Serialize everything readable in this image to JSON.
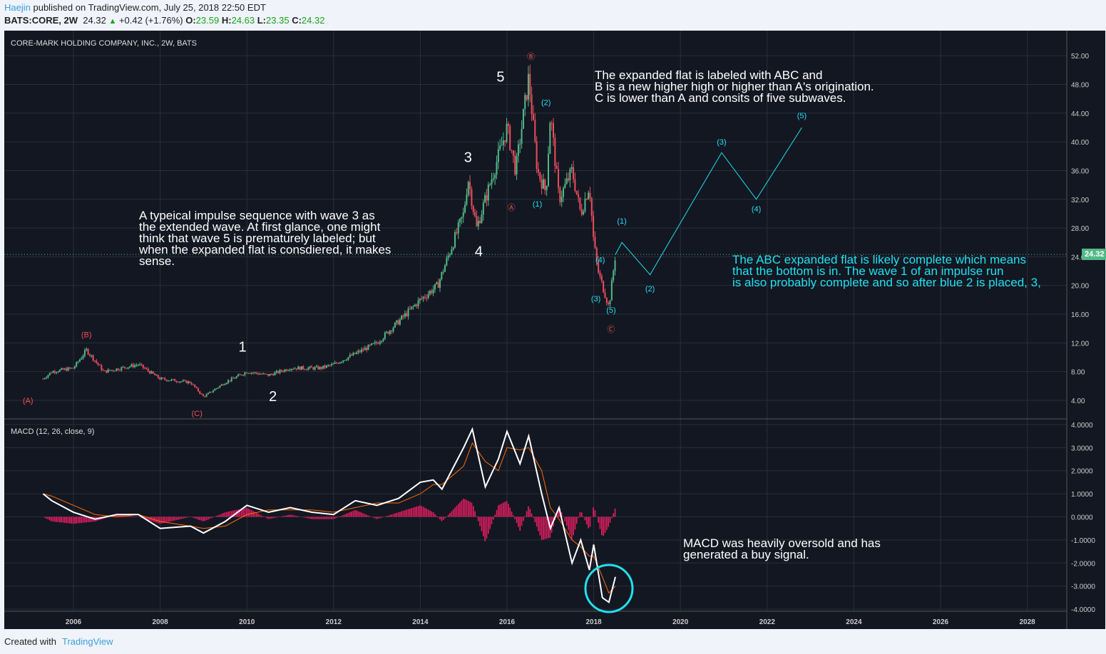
{
  "header": {
    "user": "Haejin",
    "published": "published on TradingView.com, July 25, 2018 22:50 EDT",
    "symbol": "BATS:CORE, 2W",
    "last": "24.32",
    "change": "+0.42 (+1.76%)",
    "o_label": "O:",
    "o": "23.59",
    "h_label": "H:",
    "h": "24.63",
    "l_label": "L:",
    "l": "23.35",
    "c_label": "C:",
    "c": "24.32"
  },
  "footer": {
    "created": "Created with",
    "brand": "TradingView"
  },
  "colors": {
    "bg": "#131722",
    "grid": "#2a2e39",
    "up": "#53b987",
    "down": "#eb4d5c",
    "macd": "#ffffff",
    "signal": "#ff6d00",
    "hist": "#e91e63",
    "wave": "#22e0f0",
    "red": "#ef5350"
  },
  "chart_data": [
    {
      "type": "line",
      "title": "CORE-MARK HOLDING COMPANY, INC., 2W, BATS",
      "ylim": [
        2,
        54
      ],
      "xlim": [
        2005,
        2029.1
      ],
      "yticks": [
        "52.00",
        "48.00",
        "44.00",
        "40.00",
        "36.00",
        "32.00",
        "28.00",
        "24.00",
        "20.00",
        "16.00",
        "12.00",
        "8.00",
        "4.00"
      ],
      "ytick_values": [
        52,
        48,
        44,
        40,
        36,
        32,
        28,
        24,
        20,
        16,
        12,
        8,
        4
      ],
      "xticks": [
        "2006",
        "2008",
        "2010",
        "2012",
        "2014",
        "2016",
        "2018",
        "2020",
        "2022",
        "2024",
        "2026",
        "2028"
      ],
      "last_price": "24.32",
      "x": [
        2005.3,
        2005.5,
        2006.0,
        2006.3,
        2006.7,
        2007.5,
        2008.0,
        2008.7,
        2009.0,
        2009.5,
        2010.0,
        2010.5,
        2011.0,
        2011.7,
        2012.0,
        2012.5,
        2013.0,
        2013.5,
        2014.0,
        2014.4,
        2014.7,
        2015.0,
        2015.1,
        2015.3,
        2015.5,
        2015.8,
        2016.0,
        2016.2,
        2016.5,
        2016.7,
        2016.9,
        2017.0,
        2017.2,
        2017.5,
        2017.7,
        2017.9,
        2018.0,
        2018.1,
        2018.35,
        2018.5
      ],
      "close": [
        7,
        8,
        8.5,
        11,
        8,
        9,
        7,
        6.5,
        4.5,
        6.5,
        8,
        7.5,
        8.5,
        8.5,
        9,
        10.5,
        12,
        15,
        18,
        20,
        25,
        30,
        35,
        28,
        32,
        38,
        42,
        36,
        49,
        36,
        33,
        44,
        32,
        36,
        30,
        34,
        26,
        22,
        17,
        24.3
      ],
      "projection": {
        "x": [
          2018.5,
          2018.65,
          2019.3,
          2020.95,
          2021.75,
          2022.8
        ],
        "y": [
          24.3,
          26,
          21.5,
          38.5,
          32,
          42
        ]
      },
      "wave_labels": [
        {
          "t": "(A)",
          "x": 2004.95,
          "y": 3.6,
          "c": "red"
        },
        {
          "t": "(B)",
          "x": 2006.3,
          "y": 12.8,
          "c": "red"
        },
        {
          "t": "(C)",
          "x": 2008.85,
          "y": 1.8,
          "c": "red"
        },
        {
          "t": "1",
          "x": 2009.9,
          "y": 10.8,
          "c": "white",
          "big": 1
        },
        {
          "t": "2",
          "x": 2010.6,
          "y": 3.9,
          "c": "white",
          "big": 1
        },
        {
          "t": "3",
          "x": 2015.1,
          "y": 37.2,
          "c": "white",
          "big": 1
        },
        {
          "t": "4",
          "x": 2015.35,
          "y": 24.1,
          "c": "white",
          "big": 1
        },
        {
          "t": "5",
          "x": 2015.85,
          "y": 48.4,
          "c": "white",
          "big": 1
        },
        {
          "t": "Ⓐ",
          "x": 2016.1,
          "y": 30.5,
          "c": "red"
        },
        {
          "t": "Ⓑ",
          "x": 2016.55,
          "y": 51.5,
          "c": "red"
        },
        {
          "t": "Ⓒ",
          "x": 2018.4,
          "y": 13.5,
          "c": "red"
        },
        {
          "t": "(1)",
          "x": 2016.7,
          "y": 31,
          "c": "cyan"
        },
        {
          "t": "(2)",
          "x": 2016.9,
          "y": 45.1,
          "c": "cyan"
        },
        {
          "t": "(3)",
          "x": 2018.05,
          "y": 17.8,
          "c": "cyan"
        },
        {
          "t": "(4)",
          "x": 2018.15,
          "y": 23.2,
          "c": "cyan"
        },
        {
          "t": "(5)",
          "x": 2018.4,
          "y": 16.2,
          "c": "cyan"
        },
        {
          "t": "(1)",
          "x": 2018.65,
          "y": 28.6,
          "c": "cyan"
        },
        {
          "t": "(2)",
          "x": 2019.3,
          "y": 19.2,
          "c": "cyan"
        },
        {
          "t": "(3)",
          "x": 2020.95,
          "y": 39.6,
          "c": "cyan"
        },
        {
          "t": "(4)",
          "x": 2021.75,
          "y": 30.3,
          "c": "cyan"
        },
        {
          "t": "(5)",
          "x": 2022.8,
          "y": 43.3,
          "c": "cyan"
        }
      ]
    },
    {
      "type": "line",
      "title": "MACD (12, 26, close, 9)",
      "ylim": [
        -4.3,
        4.3
      ],
      "yticks": [
        "4.0000",
        "3.0000",
        "2.0000",
        "1.0000",
        "0.0000",
        "-1.0000",
        "-2.0000",
        "-3.0000",
        "-4.0000"
      ],
      "ytick_values": [
        4,
        3,
        2,
        1,
        0,
        -1,
        -2,
        -3,
        -4
      ],
      "x": [
        2005.3,
        2005.5,
        2006.0,
        2006.5,
        2007.0,
        2007.5,
        2008.0,
        2008.7,
        2009.0,
        2009.5,
        2010.0,
        2010.5,
        2011.0,
        2011.5,
        2012.0,
        2012.5,
        2013.0,
        2013.5,
        2014.0,
        2014.3,
        2014.5,
        2015.0,
        2015.2,
        2015.5,
        2015.8,
        2016.0,
        2016.3,
        2016.5,
        2016.8,
        2017.0,
        2017.2,
        2017.5,
        2017.7,
        2017.9,
        2018.0,
        2018.2,
        2018.35,
        2018.5
      ],
      "macd": [
        1.0,
        0.7,
        0.2,
        -0.1,
        0.1,
        0.1,
        -0.5,
        -0.4,
        -0.7,
        -0.2,
        0.5,
        0.2,
        0.4,
        0.2,
        0.1,
        0.7,
        0.5,
        0.8,
        1.5,
        1.6,
        1.2,
        3.0,
        3.8,
        1.3,
        2.5,
        3.7,
        2.3,
        3.5,
        1.0,
        -0.5,
        0.4,
        -2.0,
        -1.0,
        -2.3,
        -1.2,
        -3.5,
        -3.7,
        -2.6
      ],
      "signal": [
        1.0,
        0.9,
        0.5,
        0.1,
        0.0,
        0.1,
        -0.2,
        -0.4,
        -0.5,
        -0.4,
        0.1,
        0.3,
        0.3,
        0.3,
        0.2,
        0.4,
        0.6,
        0.6,
        1.0,
        1.4,
        1.4,
        2.2,
        3.2,
        2.4,
        2.0,
        3.0,
        2.9,
        3.0,
        2.0,
        0.4,
        -0.1,
        -1.0,
        -1.3,
        -1.7,
        -1.7,
        -2.6,
        -3.3,
        -3.0
      ]
    }
  ],
  "annotations": {
    "impulse": "A typeical impulse sequence with wave 3 as\nthe extended wave. At first glance, one might\nthink that wave 5 is prematurely labeled; but\nwhen the expanded flat is consdiered, it makes\nsense.",
    "flat": "The expanded flat is labeled with ABC and\nB is a new higher high or higher than A's origination.\nC is lower than A and consits of five subwaves.",
    "complete": "The ABC expanded flat is likely complete which means\nthat the bottom is in. The wave 1 of an impulse run\nis also probably complete and so after blue 2 is placed, 3,",
    "macd": "MACD was heavily oversold and has\ngenerated a buy signal."
  }
}
